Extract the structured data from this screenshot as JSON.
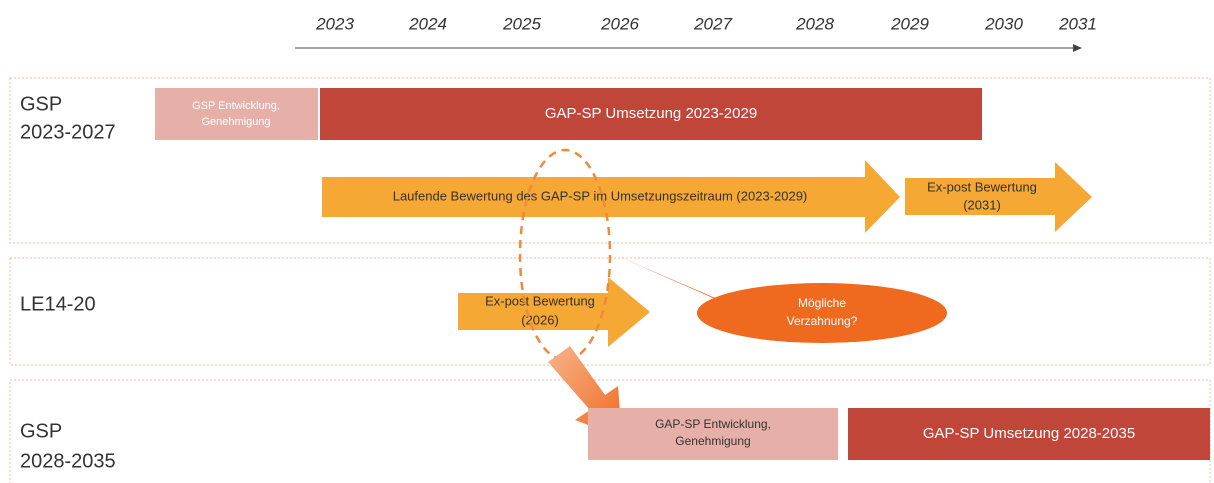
{
  "timeline": {
    "years": [
      "2023",
      "2024",
      "2025",
      "2026",
      "2027",
      "2028",
      "2029",
      "2030",
      "2031"
    ]
  },
  "rows": [
    {
      "label": [
        "GSP",
        "2023-2027"
      ]
    },
    {
      "label": [
        "LE14-20"
      ]
    },
    {
      "label": [
        "GSP",
        "2028-2035"
      ]
    }
  ],
  "bars": [
    {
      "text": [
        "GSP Entwicklung,",
        "Genehmigung"
      ]
    },
    {
      "text": [
        "GAP-SP Umsetzung  2023-2029"
      ]
    },
    {
      "text": [
        "Laufende Bewertung des GAP-SP im Umsetzungszeitraum  (2023-2029)"
      ]
    },
    {
      "text": [
        "Ex-post Bewertung",
        "(2031)"
      ]
    },
    {
      "text": [
        "Ex-post Bewertung",
        "(2026)"
      ]
    },
    {
      "text": [
        "GAP-SP Entwicklung,",
        "Genehmigung"
      ]
    },
    {
      "text": [
        "GAP-SP Umsetzung  2028-2035"
      ]
    }
  ],
  "callout": {
    "text": [
      "Mögliche",
      "Verzahnung?"
    ]
  }
}
